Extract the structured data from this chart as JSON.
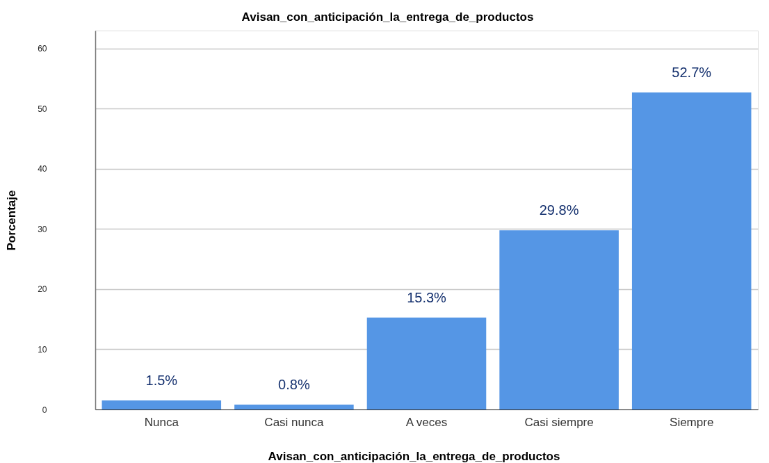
{
  "chart_data": {
    "type": "bar",
    "title": "Avisan_con_anticipación_la_entrega_de_productos",
    "xlabel": "Avisan_con_anticipación_la_entrega_de_productos",
    "ylabel": "Porcentaje",
    "categories": [
      "Nunca",
      "Casi nunca",
      "A veces",
      "Casi siempre",
      "Siempre"
    ],
    "values": [
      1.5,
      0.8,
      15.3,
      29.8,
      52.7
    ],
    "value_labels": [
      "1.5%",
      "0.8%",
      "15.3%",
      "29.8%",
      "52.7%"
    ],
    "color": "#5596e5",
    "ylim": [
      0,
      63
    ],
    "yticks": [
      0,
      10,
      20,
      30,
      40,
      50,
      60
    ],
    "grid": "y"
  }
}
